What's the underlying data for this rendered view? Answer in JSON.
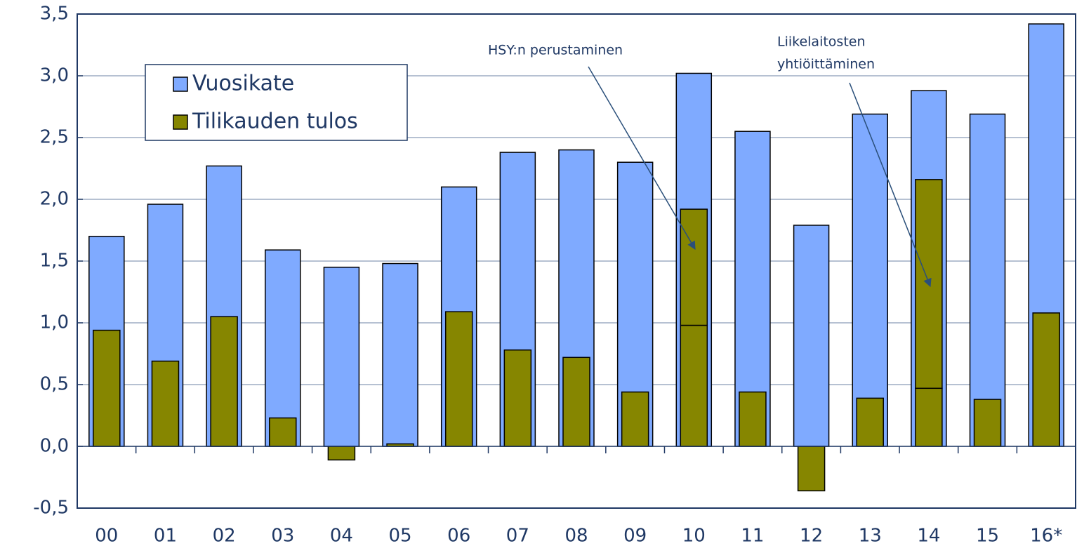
{
  "chart_data": {
    "type": "bar",
    "categories": [
      "00",
      "01",
      "02",
      "03",
      "04",
      "05",
      "06",
      "07",
      "08",
      "09",
      "10",
      "11",
      "12",
      "13",
      "14",
      "15",
      "16*"
    ],
    "series": [
      {
        "name": "Vuosikate",
        "color": "#7faaff",
        "values": [
          1.7,
          1.96,
          2.27,
          1.59,
          1.45,
          1.48,
          2.1,
          2.38,
          2.4,
          2.3,
          3.02,
          2.55,
          1.79,
          2.69,
          2.88,
          2.69,
          3.42
        ]
      },
      {
        "name": "Tilikauden tulos",
        "color": "#868600",
        "values": [
          0.94,
          0.69,
          1.05,
          0.23,
          -0.11,
          0.02,
          1.09,
          0.78,
          0.72,
          0.44,
          0.98,
          0.44,
          -0.36,
          0.39,
          0.47,
          0.38,
          1.08
        ]
      },
      {
        "color": "#868600",
        "values": [
          null,
          null,
          null,
          null,
          null,
          null,
          null,
          null,
          null,
          null,
          0.94,
          null,
          null,
          null,
          1.69,
          null,
          null
        ]
      }
    ],
    "ylim": [
      -0.5,
      3.5
    ],
    "yticks": [
      {
        "value": -0.5,
        "label": "-0,5"
      },
      {
        "value": 0,
        "label": "0,0"
      },
      {
        "value": 0.5,
        "label": "0,5"
      },
      {
        "value": 1,
        "label": "1,0"
      },
      {
        "value": 1.5,
        "label": "1,5"
      },
      {
        "value": 2,
        "label": "2,0"
      },
      {
        "value": 2.5,
        "label": "2,5"
      },
      {
        "value": 3,
        "label": "3,0"
      },
      {
        "value": 3.5,
        "label": "3,5"
      }
    ],
    "grid": true,
    "annotations": [
      {
        "lines": [
          "HSY:n perustaminen"
        ]
      },
      {
        "lines": [
          "Liikelaitosten",
          "yhtiöittäminen"
        ]
      }
    ]
  }
}
